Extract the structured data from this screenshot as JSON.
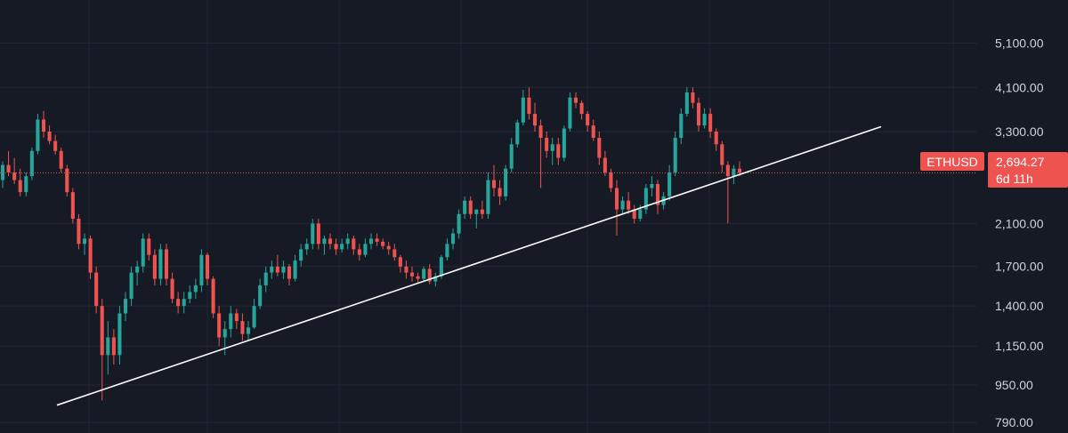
{
  "colors": {
    "background": "#161a25",
    "grid": "#232733",
    "up": "#26a69a",
    "down": "#ef5350",
    "trendline": "#ffffff",
    "price_line": "#e0524e",
    "tick_text": "#cfd3dc"
  },
  "ticker": {
    "symbol": "ETHUSD",
    "price": "2,694.27",
    "countdown": "6d 11h"
  },
  "chart_data": {
    "type": "candlestick",
    "symbol": "ETHUSD",
    "y_scale": "log",
    "ylim": [
      750,
      6300
    ],
    "y_ticks": [
      {
        "value": 790,
        "label": "790.00"
      },
      {
        "value": 950,
        "label": "950.00"
      },
      {
        "value": 1150,
        "label": "1,150.00"
      },
      {
        "value": 1400,
        "label": "1,400.00"
      },
      {
        "value": 1700,
        "label": "1,700.00"
      },
      {
        "value": 2100,
        "label": "2,100.00"
      },
      {
        "value": 2694.27,
        "label": ""
      },
      {
        "value": 3300,
        "label": "3,300.00"
      },
      {
        "value": 4100,
        "label": "4,100.00"
      },
      {
        "value": 5100,
        "label": "5,100.00"
      }
    ],
    "grid": true,
    "last_price": 2694.27,
    "candles": [
      [
        2600,
        2850,
        2500,
        2800
      ],
      [
        2800,
        3000,
        2650,
        2700
      ],
      [
        2700,
        2900,
        2550,
        2600
      ],
      [
        2600,
        2750,
        2400,
        2450
      ],
      [
        2450,
        2700,
        2400,
        2650
      ],
      [
        2650,
        3050,
        2600,
        3000
      ],
      [
        3000,
        3600,
        2950,
        3500
      ],
      [
        3500,
        3650,
        3200,
        3300
      ],
      [
        3300,
        3400,
        3100,
        3150
      ],
      [
        3150,
        3250,
        2950,
        3000
      ],
      [
        3000,
        3050,
        2700,
        2750
      ],
      [
        2750,
        2800,
        2400,
        2450
      ],
      [
        2450,
        2500,
        2100,
        2150
      ],
      [
        2150,
        2200,
        1850,
        1900
      ],
      [
        1900,
        2000,
        1800,
        1950
      ],
      [
        1950,
        1980,
        1600,
        1650
      ],
      [
        1650,
        1700,
        1350,
        1400
      ],
      [
        1400,
        1450,
        880,
        1100
      ],
      [
        1100,
        1300,
        1000,
        1200
      ],
      [
        1200,
        1250,
        1050,
        1100
      ],
      [
        1100,
        1400,
        1050,
        1350
      ],
      [
        1350,
        1500,
        1300,
        1450
      ],
      [
        1450,
        1700,
        1400,
        1650
      ],
      [
        1650,
        1750,
        1550,
        1700
      ],
      [
        1700,
        2000,
        1650,
        1950
      ],
      [
        1950,
        2000,
        1750,
        1800
      ],
      [
        1800,
        1850,
        1550,
        1600
      ],
      [
        1600,
        1900,
        1550,
        1850
      ],
      [
        1850,
        1900,
        1550,
        1600
      ],
      [
        1600,
        1650,
        1420,
        1450
      ],
      [
        1450,
        1500,
        1350,
        1400
      ],
      [
        1400,
        1500,
        1350,
        1450
      ],
      [
        1450,
        1550,
        1420,
        1500
      ],
      [
        1500,
        1600,
        1450,
        1550
      ],
      [
        1550,
        1850,
        1500,
        1800
      ],
      [
        1800,
        1820,
        1550,
        1600
      ],
      [
        1600,
        1620,
        1320,
        1350
      ],
      [
        1350,
        1400,
        1150,
        1200
      ],
      [
        1200,
        1300,
        1100,
        1250
      ],
      [
        1250,
        1400,
        1200,
        1350
      ],
      [
        1350,
        1380,
        1250,
        1300
      ],
      [
        1300,
        1350,
        1180,
        1220
      ],
      [
        1220,
        1300,
        1180,
        1260
      ],
      [
        1260,
        1450,
        1250,
        1400
      ],
      [
        1400,
        1600,
        1380,
        1550
      ],
      [
        1550,
        1700,
        1500,
        1650
      ],
      [
        1650,
        1750,
        1600,
        1700
      ],
      [
        1700,
        1800,
        1620,
        1650
      ],
      [
        1650,
        1750,
        1600,
        1700
      ],
      [
        1700,
        1720,
        1550,
        1600
      ],
      [
        1600,
        1800,
        1580,
        1750
      ],
      [
        1750,
        1900,
        1700,
        1850
      ],
      [
        1850,
        1950,
        1800,
        1900
      ],
      [
        1900,
        2150,
        1850,
        2100
      ],
      [
        2100,
        2150,
        1850,
        1900
      ],
      [
        1900,
        1980,
        1800,
        1950
      ],
      [
        1950,
        2000,
        1850,
        1900
      ],
      [
        1900,
        1950,
        1800,
        1850
      ],
      [
        1850,
        1950,
        1820,
        1900
      ],
      [
        1900,
        2000,
        1850,
        1950
      ],
      [
        1950,
        1980,
        1800,
        1850
      ],
      [
        1850,
        1900,
        1750,
        1800
      ],
      [
        1800,
        1950,
        1780,
        1900
      ],
      [
        1900,
        2000,
        1850,
        1950
      ],
      [
        1950,
        2000,
        1880,
        1920
      ],
      [
        1920,
        1950,
        1850,
        1880
      ],
      [
        1880,
        1920,
        1800,
        1850
      ],
      [
        1850,
        1900,
        1750,
        1780
      ],
      [
        1780,
        1800,
        1650,
        1700
      ],
      [
        1700,
        1750,
        1600,
        1650
      ],
      [
        1650,
        1700,
        1580,
        1620
      ],
      [
        1620,
        1650,
        1560,
        1600
      ],
      [
        1600,
        1700,
        1580,
        1680
      ],
      [
        1680,
        1720,
        1560,
        1580
      ],
      [
        1580,
        1650,
        1540,
        1620
      ],
      [
        1620,
        1800,
        1600,
        1780
      ],
      [
        1780,
        1950,
        1750,
        1900
      ],
      [
        1900,
        2050,
        1850,
        2000
      ],
      [
        2000,
        2250,
        1950,
        2200
      ],
      [
        2200,
        2400,
        2150,
        2350
      ],
      [
        2350,
        2400,
        2150,
        2200
      ],
      [
        2200,
        2250,
        2050,
        2250
      ],
      [
        2250,
        2350,
        2150,
        2200
      ],
      [
        2200,
        2700,
        2150,
        2600
      ],
      [
        2600,
        2800,
        2400,
        2500
      ],
      [
        2500,
        2600,
        2300,
        2400
      ],
      [
        2400,
        2800,
        2350,
        2750
      ],
      [
        2750,
        3200,
        2700,
        3100
      ],
      [
        3100,
        3500,
        3050,
        3450
      ],
      [
        3450,
        4050,
        3400,
        3900
      ],
      [
        3900,
        4100,
        3500,
        3600
      ],
      [
        3600,
        3800,
        3300,
        3400
      ],
      [
        3400,
        3500,
        2500,
        3200
      ],
      [
        3200,
        3300,
        2900,
        3000
      ],
      [
        3000,
        3200,
        2800,
        3100
      ],
      [
        3100,
        3200,
        2800,
        2900
      ],
      [
        2900,
        3400,
        2850,
        3350
      ],
      [
        3350,
        4000,
        3300,
        3900
      ],
      [
        3900,
        4000,
        3700,
        3800
      ],
      [
        3800,
        3850,
        3500,
        3600
      ],
      [
        3600,
        3650,
        3300,
        3400
      ],
      [
        3400,
        3500,
        3150,
        3200
      ],
      [
        3200,
        3300,
        2800,
        2900
      ],
      [
        2900,
        3000,
        2650,
        2700
      ],
      [
        2700,
        2750,
        2450,
        2500
      ],
      [
        2500,
        2600,
        1980,
        2250
      ],
      [
        2250,
        2400,
        2200,
        2350
      ],
      [
        2350,
        2450,
        2200,
        2250
      ],
      [
        2250,
        2300,
        2100,
        2150
      ],
      [
        2150,
        2300,
        2120,
        2250
      ],
      [
        2250,
        2550,
        2200,
        2500
      ],
      [
        2500,
        2650,
        2400,
        2550
      ],
      [
        2550,
        2600,
        2200,
        2300
      ],
      [
        2300,
        2450,
        2250,
        2400
      ],
      [
        2400,
        2800,
        2350,
        2700
      ],
      [
        2700,
        3300,
        2650,
        3200
      ],
      [
        3200,
        3700,
        3100,
        3600
      ],
      [
        3600,
        4100,
        3550,
        4000
      ],
      [
        4000,
        4100,
        3700,
        3800
      ],
      [
        3800,
        3900,
        3300,
        3400
      ],
      [
        3400,
        3700,
        3350,
        3600
      ],
      [
        3600,
        3700,
        3200,
        3300
      ],
      [
        3300,
        3350,
        3000,
        3100
      ],
      [
        3100,
        3150,
        2700,
        2800
      ],
      [
        2800,
        2850,
        2100,
        2650
      ],
      [
        2650,
        2800,
        2550,
        2750
      ],
      [
        2750,
        2850,
        2650,
        2694.27
      ]
    ]
  }
}
